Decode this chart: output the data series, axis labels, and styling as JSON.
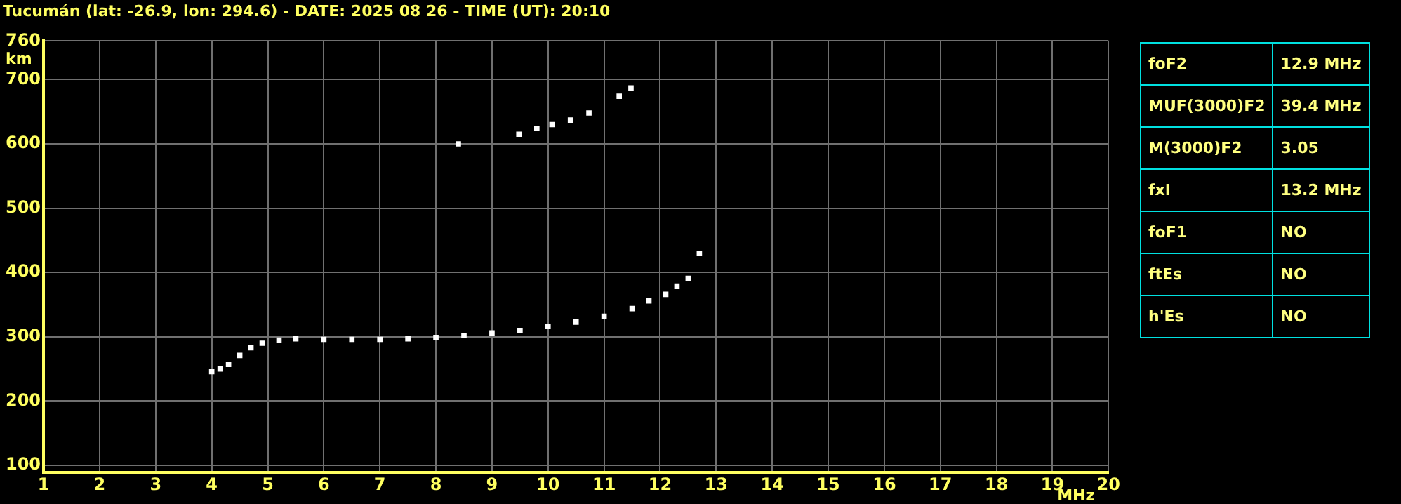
{
  "chart_data": {
    "type": "scatter",
    "title": "Tucumán (lat: -26.9, lon: 294.6) - DATE: 2025 08 26 - TIME (UT): 20:10",
    "xlabel": "MHz",
    "ylabel": "km",
    "series": [
      {
        "color": "#ffffff",
        "x": [
          4.0,
          4.15,
          4.3,
          4.5,
          4.7,
          4.9,
          5.2,
          5.5,
          6.0,
          6.5,
          7.0,
          7.5,
          8.0,
          8.5,
          9.0,
          9.5,
          10.0,
          10.5,
          11.0,
          11.5,
          11.8,
          12.1,
          12.3,
          12.5,
          12.7
        ],
        "values": [
          246,
          250,
          257,
          271,
          283,
          290,
          295,
          297,
          296,
          296,
          296,
          297,
          299,
          302,
          306,
          310,
          316,
          323,
          332,
          344,
          356,
          366,
          379,
          391,
          430
        ]
      },
      {
        "color": "#ffffff",
        "x": [
          8.4,
          9.48,
          9.8,
          10.07,
          10.4,
          10.73,
          11.27,
          11.48
        ],
        "values": [
          600,
          615,
          624,
          630,
          637,
          648,
          674,
          687
        ]
      }
    ],
    "xlim": [
      1,
      20
    ],
    "xticks": [
      1,
      2,
      3,
      4,
      5,
      6,
      7,
      8,
      9,
      10,
      11,
      12,
      13,
      14,
      15,
      16,
      17,
      18,
      19,
      20
    ],
    "ylim": [
      89,
      760
    ],
    "yticks": [
      100,
      200,
      300,
      400,
      500,
      600,
      700,
      760
    ],
    "grid": true,
    "marker": "square",
    "annotations": [
      "foF2",
      "12.9 MHz",
      "MUF(3000)F2",
      "39.4 MHz",
      "M(3000)F2",
      "3.05",
      "fxI",
      "13.2 MHz",
      "foF1",
      "NO",
      "ftEs",
      "NO",
      "h'Es",
      "NO"
    ]
  }
}
